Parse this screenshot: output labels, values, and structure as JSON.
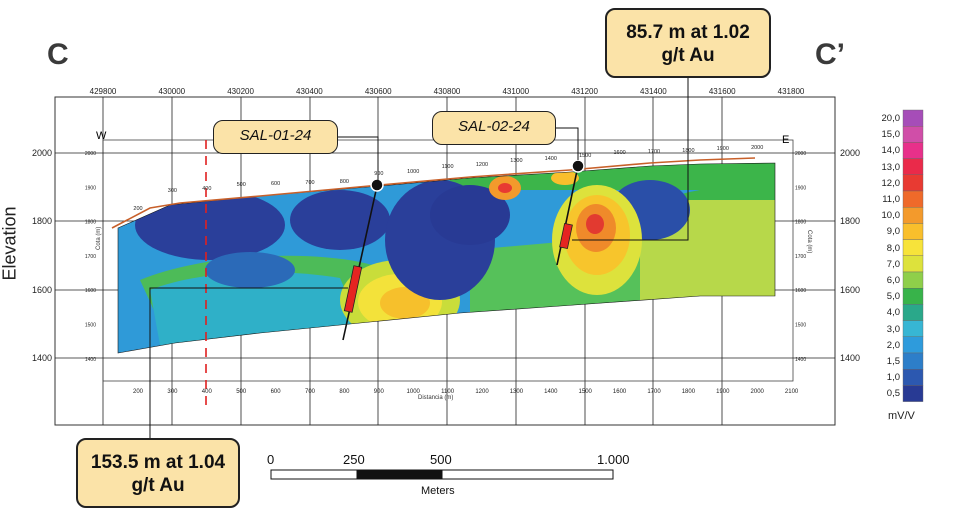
{
  "section": {
    "start_label": "C",
    "end_label": "C’"
  },
  "axis": {
    "elevation_label": "Elevation",
    "distance_label": "Distancia (m)",
    "cota_label": "Cota (m)",
    "easting_ticks": [
      "429800",
      "430000",
      "430200",
      "430400",
      "430600",
      "430800",
      "431000",
      "431200",
      "431400",
      "431600",
      "431800"
    ],
    "distance_ticks": [
      "200",
      "300",
      "400",
      "500",
      "600",
      "700",
      "800",
      "900",
      "1000",
      "1100",
      "1200",
      "1300",
      "1400",
      "1500",
      "1600",
      "1700",
      "1800",
      "1900",
      "2000",
      "2100"
    ],
    "surface_distance_labels": [
      "200",
      "300",
      "400",
      "500",
      "600",
      "700",
      "800",
      "900",
      "1000",
      "1100",
      "1200",
      "1300",
      "1400",
      "1500",
      "1600",
      "1700",
      "1800",
      "1900",
      "2000"
    ],
    "elevation_major": [
      "2000",
      "1800",
      "1600",
      "1400"
    ],
    "elevation_minor": [
      "2000",
      "1900",
      "1800",
      "1700",
      "1600",
      "1500",
      "1400"
    ],
    "west": "W",
    "east": "E"
  },
  "drillholes": [
    {
      "name": "SAL-01-24",
      "intercept": "153.5 m at 1.04 g/t Au"
    },
    {
      "name": "SAL-02-24",
      "intercept": "85.7 m at 1.02 g/t Au"
    }
  ],
  "callouts": {
    "sal01_line1": "153.5 m at 1.04",
    "sal01_line2": "g/t Au",
    "sal02_line1": "85.7 m at 1.02",
    "sal02_line2": "g/t Au"
  },
  "colorbar": {
    "unit": "mV/V",
    "labels": [
      "20,0",
      "15,0",
      "14,0",
      "13,0",
      "12,0",
      "11,0",
      "10,0",
      "9,0",
      "8,0",
      "7,0",
      "6,0",
      "5,0",
      "4,0",
      "3,0",
      "2,0",
      "1,5",
      "1,0",
      "0,5"
    ],
    "colors": [
      "#a64db8",
      "#d04ea8",
      "#e8308a",
      "#ea2a4a",
      "#e83a32",
      "#ef6a2a",
      "#f39a2c",
      "#f9bf2c",
      "#f7e33a",
      "#dde23c",
      "#8fcf4a",
      "#38b34a",
      "#2aa88a",
      "#37b6d4",
      "#2e9bdc",
      "#2d7ec9",
      "#2c58b0",
      "#283a94"
    ]
  },
  "scale_bar": {
    "labels": [
      "0",
      "250",
      "500",
      "1.000"
    ],
    "unit": "Meters"
  }
}
